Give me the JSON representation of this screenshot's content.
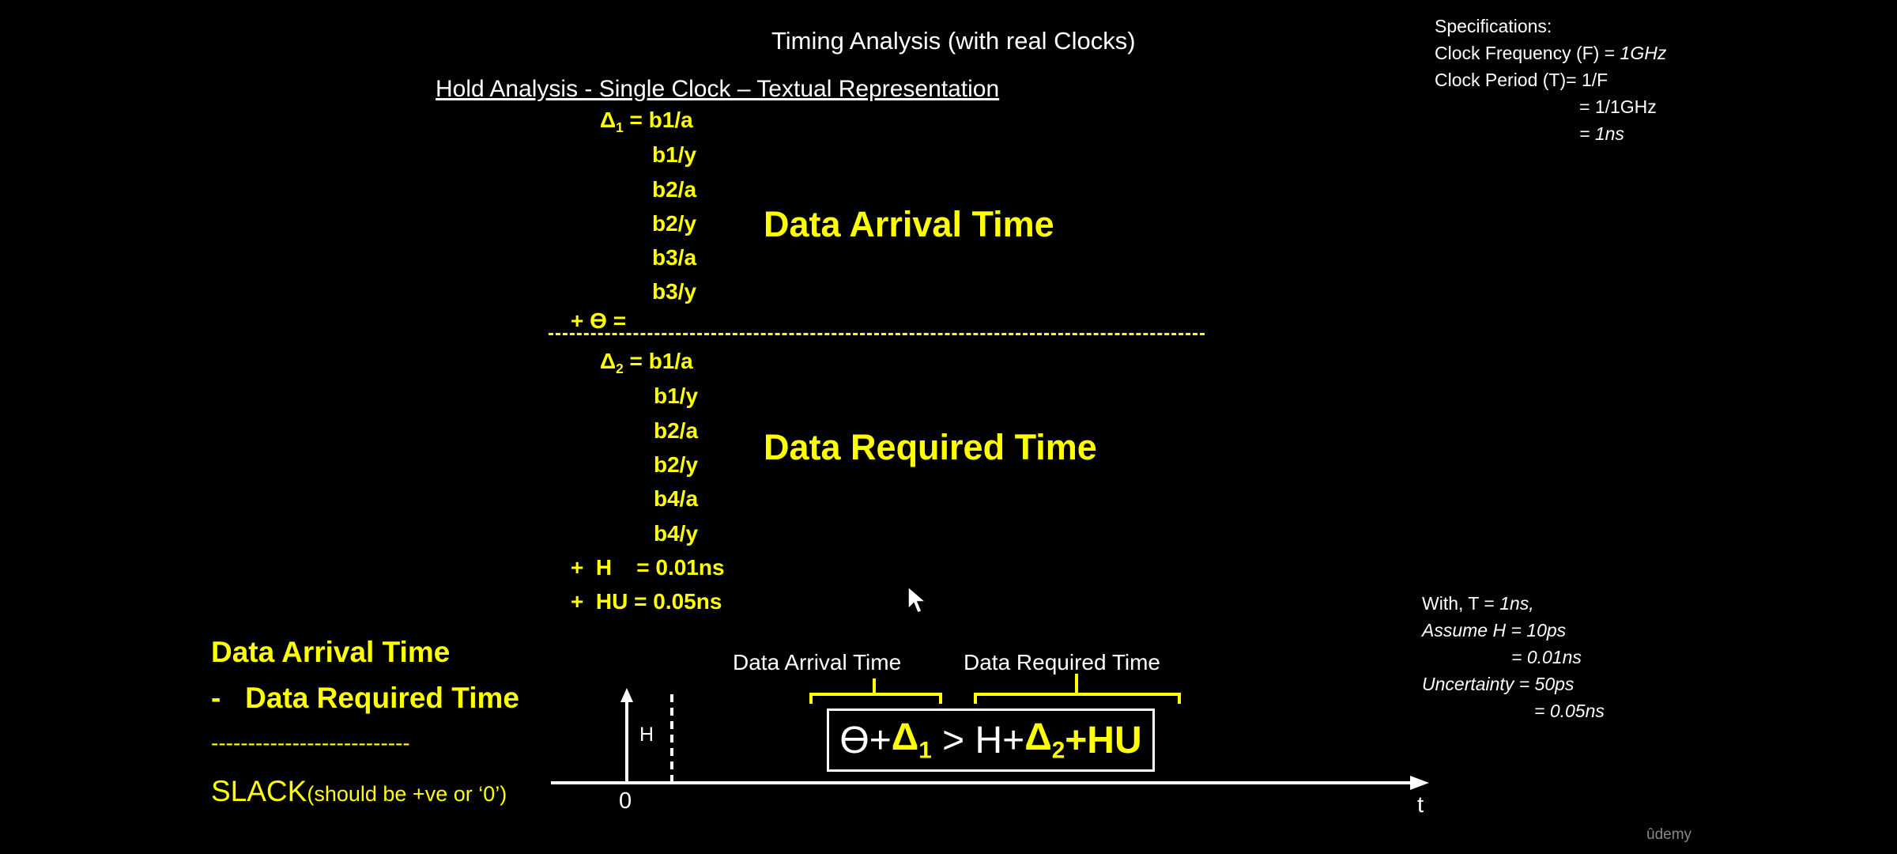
{
  "title": "Timing Analysis (with real Clocks)",
  "subtitle": "Hold Analysis - Single Clock – Textual Representation",
  "specs": {
    "heading": "Specifications:",
    "freq_label": "Clock Frequency (F) = ",
    "freq_value": "1GHz",
    "period_label": "Clock Period (T)= 1/F",
    "period_line2": "= 1/1GHz",
    "period_line3": "= 1ns"
  },
  "arrival": {
    "delta_symbol": "Δ",
    "delta_sub": "1",
    "first": " = b1/a",
    "items": [
      "b1/y",
      "b2/a",
      "b2/y",
      "b3/a",
      "b3/y"
    ],
    "theta_line": "+ ϴ =",
    "label": "Data Arrival Time"
  },
  "required": {
    "delta_symbol": "Δ",
    "delta_sub": "2",
    "first": " = b1/a",
    "items": [
      "b1/y",
      "b2/a",
      "b2/y",
      "b4/a",
      "b4/y"
    ],
    "hold_line": "+  H    = 0.01ns",
    "hu_line": "+  HU = 0.05ns",
    "label": "Data Required Time"
  },
  "slack": {
    "line1": "Data Arrival Time",
    "line2": "-   Data Required Time",
    "separator": "---------------------------",
    "slack_word": "SLACK",
    "slack_note": "(should be +ve or ‘0’)"
  },
  "timeline": {
    "h_label": "H",
    "zero_label": "0",
    "t_label": "t",
    "arrival_label": "Data Arrival Time",
    "required_label": "Data Required Time",
    "eq_theta": "ϴ+",
    "eq_d1": "Δ",
    "eq_d1_sub": "1",
    "eq_mid": " > H+",
    "eq_d2": "Δ",
    "eq_d2_sub": "2",
    "eq_end": "+HU"
  },
  "assumptions": {
    "line1_label": "With, T = ",
    "line1_value": "1ns,",
    "line2": "Assume H = 10ps",
    "line3": "= 0.01ns",
    "line4": "Uncertainty = 50ps",
    "line5": "= 0.05ns"
  },
  "watermark": "ûdemy",
  "colors": {
    "accent": "#ffff00",
    "text": "#ffffff",
    "background": "#000000"
  }
}
